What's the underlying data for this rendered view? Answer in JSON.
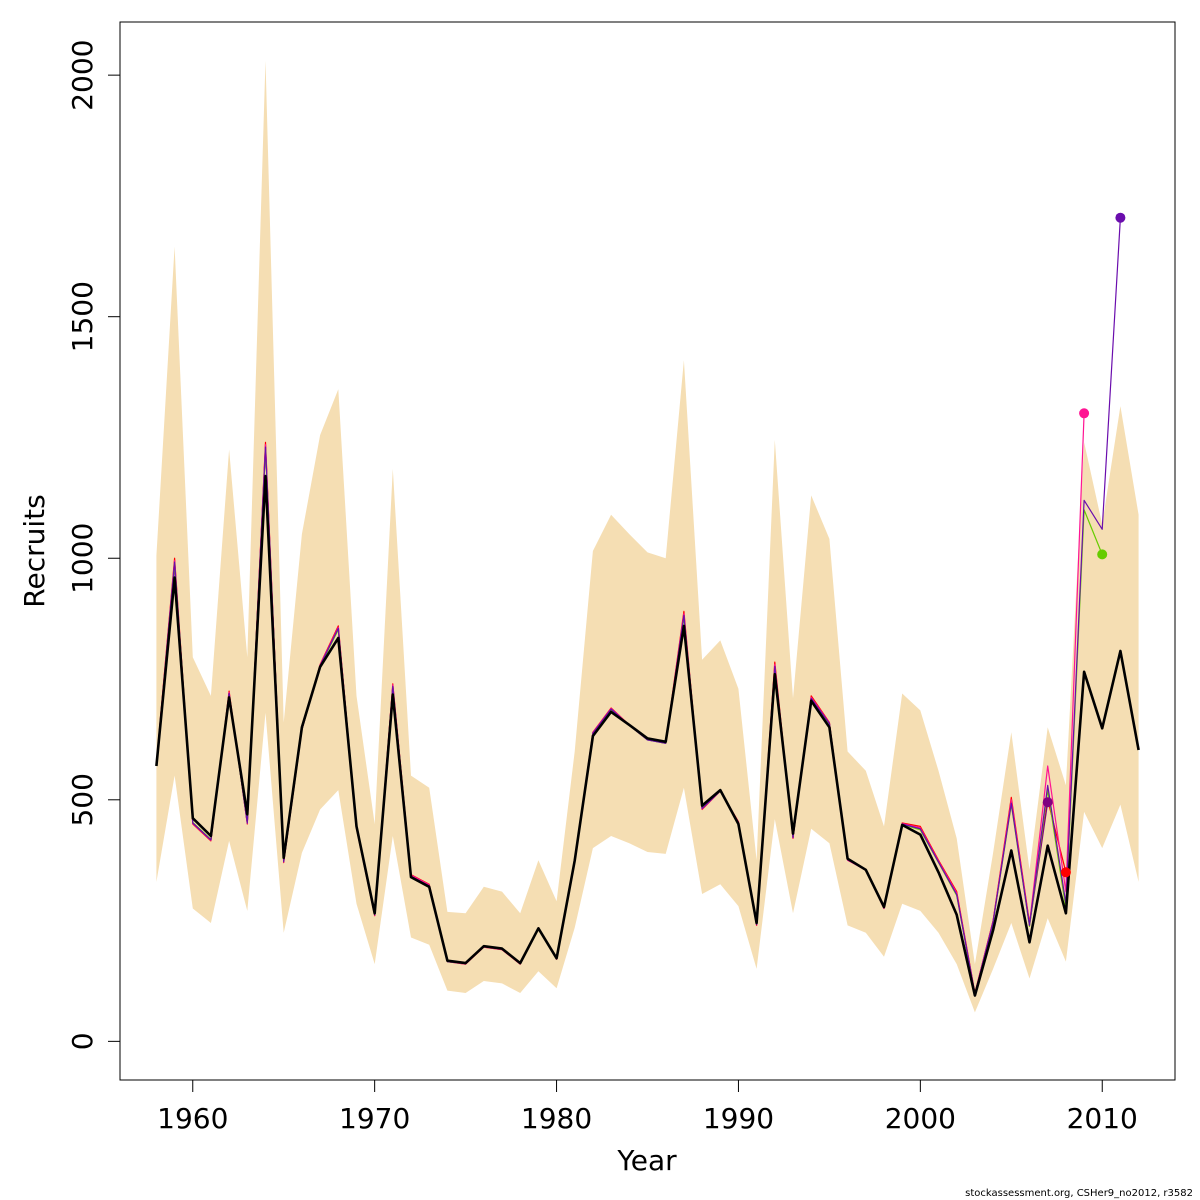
{
  "chart_data": {
    "type": "line",
    "xlabel": "Year",
    "ylabel": "Recruits",
    "credit": "stockassessment.org, CSHer9_no2012, r3582",
    "xlim": [
      1956,
      2014
    ],
    "ylim": [
      -80,
      2110
    ],
    "x_ticks": [
      1960,
      1970,
      1980,
      1990,
      2000,
      2010
    ],
    "y_ticks": [
      0,
      500,
      1000,
      1500,
      2000
    ],
    "grid": false,
    "legend": "none",
    "band": {
      "color": "#f5deb3",
      "x": [
        1958,
        1959,
        1960,
        1961,
        1962,
        1963,
        1964,
        1965,
        1966,
        1967,
        1968,
        1969,
        1970,
        1971,
        1972,
        1973,
        1974,
        1975,
        1976,
        1977,
        1978,
        1979,
        1980,
        1981,
        1982,
        1983,
        1984,
        1985,
        1986,
        1987,
        1988,
        1989,
        1990,
        1991,
        1992,
        1993,
        1994,
        1995,
        1996,
        1997,
        1998,
        1999,
        2000,
        2001,
        2002,
        2003,
        2004,
        2005,
        2006,
        2007,
        2008,
        2009,
        2010,
        2011,
        2012
      ],
      "upper": [
        1005,
        1645,
        795,
        715,
        1225,
        795,
        2030,
        660,
        1050,
        1255,
        1350,
        715,
        450,
        1185,
        550,
        525,
        268,
        265,
        320,
        310,
        265,
        375,
        290,
        600,
        1015,
        1090,
        1050,
        1012,
        1000,
        1410,
        790,
        830,
        730,
        375,
        1245,
        710,
        1130,
        1040,
        600,
        560,
        445,
        720,
        685,
        560,
        420,
        160,
        390,
        640,
        355,
        650,
        530,
        1240,
        1070,
        1315,
        1090
      ],
      "lower": [
        330,
        550,
        275,
        245,
        415,
        270,
        680,
        225,
        390,
        480,
        520,
        285,
        160,
        425,
        215,
        200,
        105,
        100,
        125,
        120,
        100,
        145,
        110,
        235,
        400,
        425,
        410,
        392,
        388,
        525,
        305,
        325,
        280,
        150,
        460,
        265,
        440,
        410,
        240,
        225,
        175,
        285,
        270,
        225,
        160,
        60,
        150,
        245,
        130,
        255,
        165,
        475,
        400,
        490,
        330
      ]
    },
    "series": [
      {
        "color": "#ff0000",
        "x": [
          1958,
          1959,
          1960,
          1961,
          1962,
          1963,
          1964,
          1965,
          1966,
          1967,
          1968,
          1969,
          1970,
          1971,
          1972,
          1973,
          1974,
          1975,
          1976,
          1977,
          1978,
          1979,
          1980,
          1981,
          1982,
          1983,
          1984,
          1985,
          1986,
          1987,
          1988,
          1989,
          1990,
          1991,
          1992,
          1993,
          1994,
          1995,
          1996,
          1997,
          1998,
          1999,
          2000,
          2001,
          2002,
          2003,
          2004,
          2005,
          2006,
          2007,
          2008
        ],
        "values": [
          575,
          1000,
          450,
          415,
          725,
          450,
          1240,
          370,
          645,
          780,
          860,
          440,
          260,
          740,
          345,
          325,
          165,
          160,
          195,
          190,
          160,
          235,
          170,
          375,
          640,
          690,
          655,
          625,
          618,
          890,
          480,
          518,
          455,
          240,
          785,
          420,
          715,
          660,
          375,
          355,
          275,
          452,
          445,
          375,
          310,
          100,
          250,
          505,
          245,
          500,
          350
        ],
        "marker_last": true
      },
      {
        "color": "#800080",
        "x": [
          1958,
          1959,
          1960,
          1961,
          1962,
          1963,
          1964,
          1965,
          1966,
          1967,
          1968,
          1969,
          1970,
          1971,
          1972,
          1973,
          1974,
          1975,
          1976,
          1977,
          1978,
          1979,
          1980,
          1981,
          1982,
          1983,
          1984,
          1985,
          1986,
          1987,
          1988,
          1989,
          1990,
          1991,
          1992,
          1993,
          1994,
          1995,
          1996,
          1997,
          1998,
          1999,
          2000,
          2001,
          2002,
          2003,
          2004,
          2005,
          2006,
          2007
        ],
        "values": [
          573,
          985,
          452,
          417,
          720,
          452,
          1230,
          372,
          645,
          778,
          855,
          442,
          262,
          735,
          342,
          322,
          165,
          161,
          196,
          191,
          161,
          234,
          171,
          374,
          638,
          688,
          654,
          624,
          617,
          880,
          483,
          518,
          453,
          242,
          775,
          422,
          710,
          658,
          376,
          354,
          276,
          450,
          440,
          372,
          305,
          98,
          248,
          495,
          240,
          495
        ],
        "marker_last": true
      },
      {
        "color": "#ff1493",
        "x": [
          1958,
          1959,
          1960,
          1961,
          1962,
          1963,
          1964,
          1965,
          1966,
          1967,
          1968,
          1969,
          1970,
          1971,
          1972,
          1973,
          1974,
          1975,
          1976,
          1977,
          1978,
          1979,
          1980,
          1981,
          1982,
          1983,
          1984,
          1985,
          1986,
          1987,
          1988,
          1989,
          1990,
          1991,
          1992,
          1993,
          1994,
          1995,
          1996,
          1997,
          1998,
          1999,
          2000,
          2001,
          2002,
          2003,
          2004,
          2005,
          2006,
          2007,
          2008,
          2009
        ],
        "values": [
          574,
          995,
          451,
          416,
          722,
          451,
          1235,
          371,
          645,
          779,
          857,
          441,
          261,
          738,
          344,
          324,
          165,
          160,
          195,
          190,
          160,
          235,
          170,
          375,
          639,
          689,
          655,
          625,
          618,
          885,
          481,
          518,
          454,
          241,
          780,
          421,
          712,
          659,
          375,
          355,
          275,
          451,
          442,
          373,
          307,
          99,
          249,
          500,
          243,
          570,
          310,
          1300
        ],
        "marker_last": true
      },
      {
        "color": "#66cc00",
        "x": [
          1958,
          1959,
          1960,
          1961,
          1962,
          1963,
          1964,
          1965,
          1966,
          1967,
          1968,
          1969,
          1970,
          1971,
          1972,
          1973,
          1974,
          1975,
          1976,
          1977,
          1978,
          1979,
          1980,
          1981,
          1982,
          1983,
          1984,
          1985,
          1986,
          1987,
          1988,
          1989,
          1990,
          1991,
          1992,
          1993,
          1994,
          1995,
          1996,
          1997,
          1998,
          1999,
          2000,
          2001,
          2002,
          2003,
          2004,
          2005,
          2006,
          2007,
          2008,
          2009,
          2010
        ],
        "values": [
          572,
          990,
          453,
          418,
          718,
          453,
          1225,
          373,
          645,
          777,
          852,
          443,
          263,
          732,
          341,
          321,
          165,
          161,
          196,
          191,
          161,
          234,
          171,
          374,
          637,
          687,
          654,
          624,
          617,
          878,
          484,
          518,
          452,
          243,
          772,
          423,
          708,
          657,
          377,
          354,
          277,
          449,
          438,
          370,
          302,
          97,
          246,
          490,
          238,
          520,
          275,
          1100,
          1008
        ],
        "marker_last": true
      },
      {
        "color": "#6a0dad",
        "x": [
          1958,
          1959,
          1960,
          1961,
          1962,
          1963,
          1964,
          1965,
          1966,
          1967,
          1968,
          1969,
          1970,
          1971,
          1972,
          1973,
          1974,
          1975,
          1976,
          1977,
          1978,
          1979,
          1980,
          1981,
          1982,
          1983,
          1984,
          1985,
          1986,
          1987,
          1988,
          1989,
          1990,
          1991,
          1992,
          1993,
          1994,
          1995,
          1996,
          1997,
          1998,
          1999,
          2000,
          2001,
          2002,
          2003,
          2004,
          2005,
          2006,
          2007,
          2008,
          2009,
          2010,
          2011
        ],
        "values": [
          573,
          992,
          452,
          417,
          720,
          452,
          1230,
          372,
          645,
          778,
          855,
          442,
          262,
          735,
          342,
          322,
          165,
          161,
          196,
          191,
          161,
          234,
          171,
          374,
          638,
          688,
          654,
          624,
          617,
          882,
          482,
          518,
          453,
          242,
          776,
          422,
          710,
          658,
          376,
          354,
          276,
          450,
          440,
          371,
          304,
          98,
          247,
          493,
          240,
          530,
          285,
          1120,
          1060,
          1705
        ],
        "marker_last": true
      },
      {
        "color": "#000000",
        "bold": true,
        "x": [
          1958,
          1959,
          1960,
          1961,
          1962,
          1963,
          1964,
          1965,
          1966,
          1967,
          1968,
          1969,
          1970,
          1971,
          1972,
          1973,
          1974,
          1975,
          1976,
          1977,
          1978,
          1979,
          1980,
          1981,
          1982,
          1983,
          1984,
          1985,
          1986,
          1987,
          1988,
          1989,
          1990,
          1991,
          1992,
          1993,
          1994,
          1995,
          1996,
          1997,
          1998,
          1999,
          2000,
          2001,
          2002,
          2003,
          2004,
          2005,
          2006,
          2007,
          2008,
          2009,
          2010,
          2011,
          2012
        ],
        "values": [
          570,
          960,
          462,
          425,
          712,
          470,
          1170,
          380,
          650,
          775,
          835,
          445,
          265,
          718,
          340,
          320,
          167,
          162,
          197,
          192,
          162,
          234,
          172,
          374,
          632,
          682,
          655,
          627,
          620,
          860,
          488,
          520,
          450,
          245,
          760,
          430,
          705,
          650,
          378,
          355,
          278,
          448,
          428,
          350,
          262,
          95,
          230,
          395,
          205,
          405,
          265,
          765,
          648,
          808,
          603
        ],
        "marker_last": false
      }
    ]
  }
}
